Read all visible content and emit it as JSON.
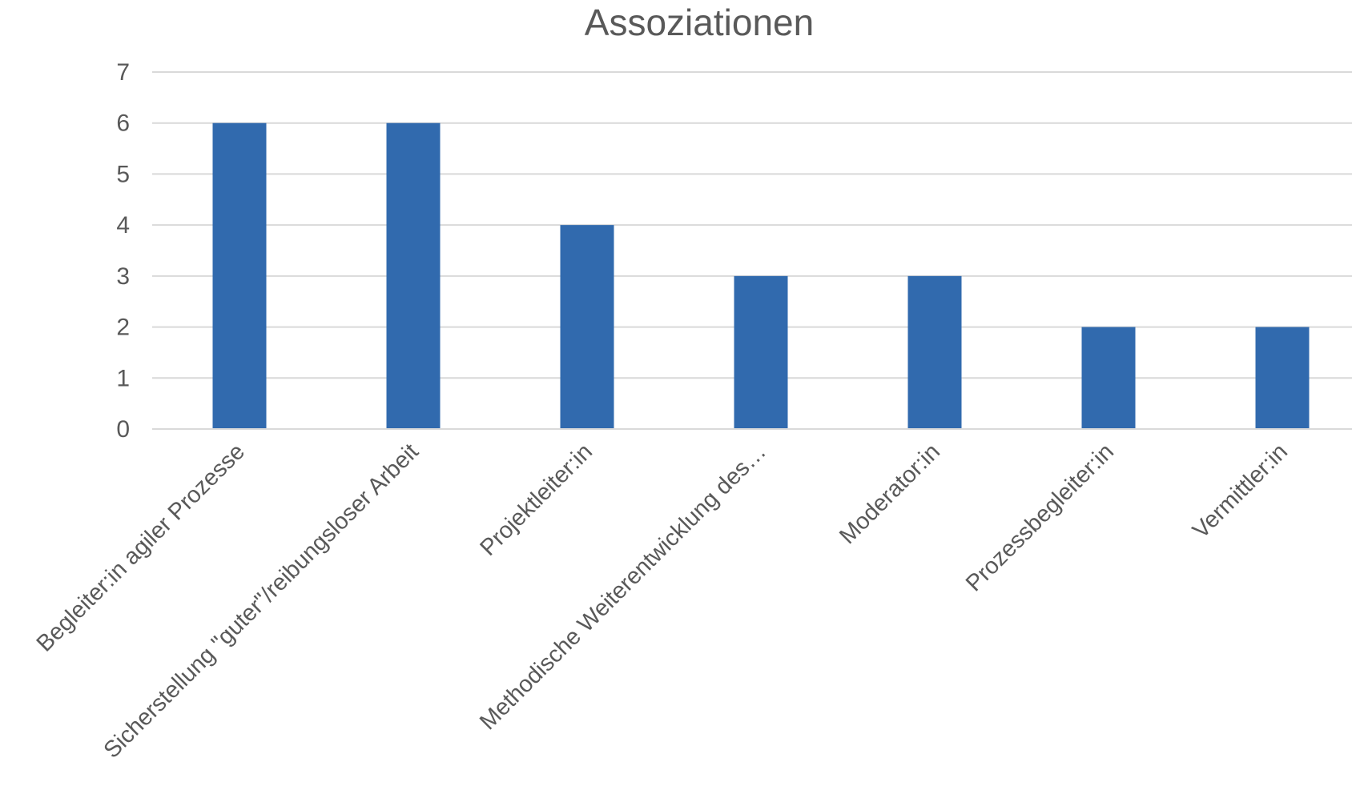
{
  "chart_data": {
    "type": "bar",
    "title": "Assoziationen",
    "xlabel": "",
    "ylabel": "",
    "categories": [
      "Begleiter:in agiler Prozesse",
      "Sicherstellung \"guter\"/reibungsloser Arbeit",
      "Projektleiter:in",
      "Methodische Weiterentwicklung des…",
      "Moderator:in",
      "Prozessbegleiter:in",
      "Vermittler:in"
    ],
    "values": [
      6,
      6,
      4,
      3,
      3,
      2,
      2
    ],
    "ylim": [
      0,
      7
    ],
    "yticks": [
      "0",
      "1",
      "2",
      "3",
      "4",
      "5",
      "6",
      "7"
    ],
    "grid": true,
    "legend": "none",
    "bar_color": "#316AAE"
  }
}
